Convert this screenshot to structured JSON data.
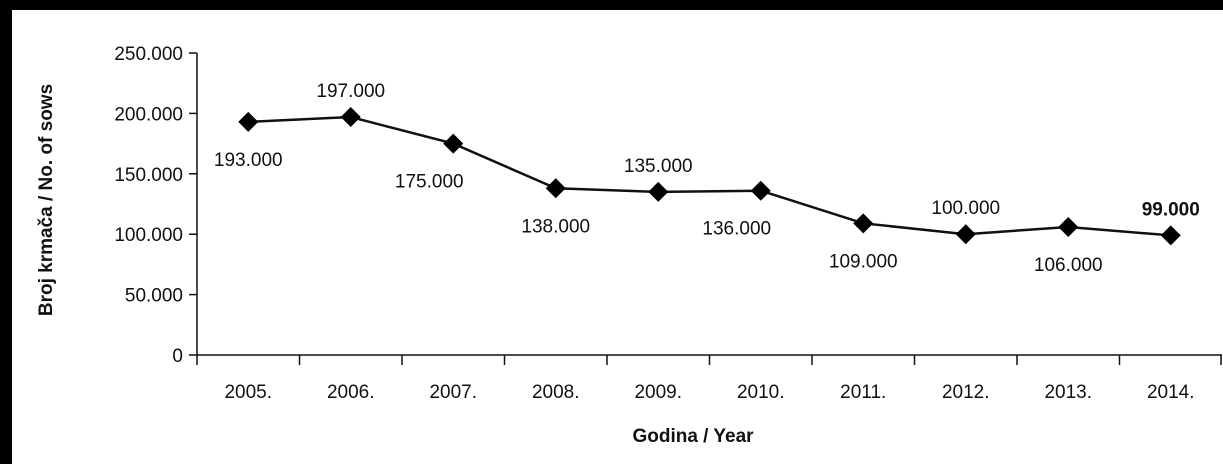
{
  "chart_data": {
    "type": "line",
    "title": "",
    "xlabel": "Godina / Year",
    "ylabel": "Broj krmača / No. of sows",
    "categories": [
      "2005.",
      "2006.",
      "2007.",
      "2008.",
      "2009.",
      "2010.",
      "2011.",
      "2012.",
      "2013.",
      "2014."
    ],
    "values": [
      193000,
      197000,
      175000,
      138000,
      135000,
      136000,
      109000,
      100000,
      106000,
      99000
    ],
    "data_labels": [
      "193.000",
      "197.000",
      "175.000",
      "138.000",
      "135.000",
      "136.000",
      "109.000",
      "100.000",
      "106.000",
      "99.000"
    ],
    "y_ticks": [
      0,
      50000,
      100000,
      150000,
      200000,
      250000
    ],
    "y_tick_labels": [
      "0",
      "50.000",
      "100.000",
      "150.000",
      "200.000",
      "250.000"
    ],
    "ylim": [
      0,
      250000
    ],
    "grid": false,
    "legend": "none",
    "colors": {
      "line": "#111111",
      "marker": "#000000",
      "frame": "#000000"
    },
    "marker": "diamond"
  }
}
